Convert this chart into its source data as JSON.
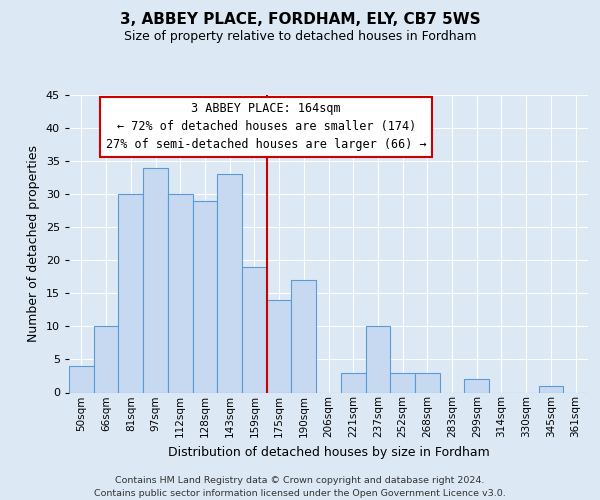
{
  "title": "3, ABBEY PLACE, FORDHAM, ELY, CB7 5WS",
  "subtitle": "Size of property relative to detached houses in Fordham",
  "xlabel": "Distribution of detached houses by size in Fordham",
  "ylabel": "Number of detached properties",
  "footer_lines": [
    "Contains HM Land Registry data © Crown copyright and database right 2024.",
    "Contains public sector information licensed under the Open Government Licence v3.0."
  ],
  "categories": [
    "50sqm",
    "66sqm",
    "81sqm",
    "97sqm",
    "112sqm",
    "128sqm",
    "143sqm",
    "159sqm",
    "175sqm",
    "190sqm",
    "206sqm",
    "221sqm",
    "237sqm",
    "252sqm",
    "268sqm",
    "283sqm",
    "299sqm",
    "314sqm",
    "330sqm",
    "345sqm",
    "361sqm"
  ],
  "values": [
    4,
    10,
    30,
    34,
    30,
    29,
    33,
    19,
    14,
    17,
    0,
    3,
    10,
    3,
    3,
    0,
    2,
    0,
    0,
    1,
    0
  ],
  "bar_color": "#c6d9f0",
  "bar_edge_color": "#5b9bd5",
  "reference_line_x": 8,
  "reference_line_color": "#cc0000",
  "annotation_title": "3 ABBEY PLACE: 164sqm",
  "annotation_line1": "← 72% of detached houses are smaller (174)",
  "annotation_line2": "27% of semi-detached houses are larger (66) →",
  "annotation_box_color": "#ffffff",
  "annotation_box_edge": "#cc0000",
  "ylim": [
    0,
    45
  ],
  "yticks": [
    0,
    5,
    10,
    15,
    20,
    25,
    30,
    35,
    40,
    45
  ],
  "bg_color": "#dce9f5",
  "plot_bg_color": "#dce9f5",
  "grid_color": "#ffffff",
  "title_fontsize": 11,
  "subtitle_fontsize": 9,
  "ylabel_fontsize": 9,
  "xlabel_fontsize": 9,
  "tick_fontsize": 8,
  "ann_fontsize": 8.5,
  "footer_fontsize": 6.8
}
